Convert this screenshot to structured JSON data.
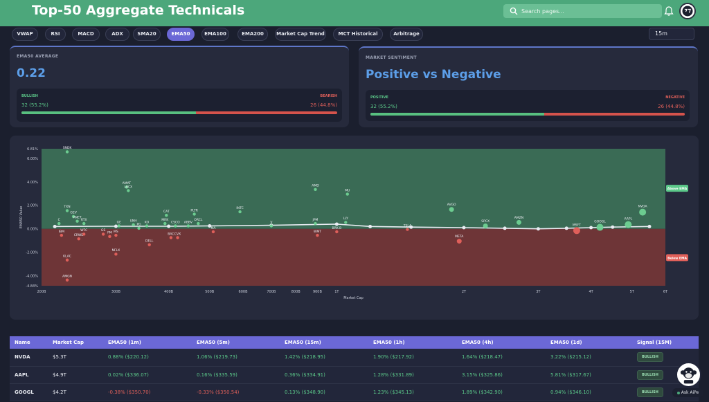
{
  "header": {
    "title": "Top-50 Aggregate Technicals",
    "search_placeholder": "Search pages..."
  },
  "tabs": [
    "VWAP",
    "RSI",
    "MACD",
    "ADX",
    "SMA20",
    "EMA50",
    "EMA100",
    "EMA200",
    "Market Cap Trend",
    "MCT Historical",
    "Arbitrage"
  ],
  "active_tab": "EMA50",
  "timeframe": "15m",
  "ema_card": {
    "label": "EMA50 AVERAGE",
    "value": "0.22",
    "bullish_label": "BULLISH",
    "bearish_label": "BEARISH",
    "bullish_value": "32 (55.2%)",
    "bearish_value": "26 (44.8%)",
    "bullish_fraction": 0.552
  },
  "sentiment_card": {
    "label": "MARKET SENTIMENT",
    "value": "Positive vs Negative",
    "positive_label": "POSITIVE",
    "negative_label": "NEGATIVE",
    "positive_value": "32 (55.2%)",
    "negative_value": "26 (44.8%)",
    "positive_fraction": 0.552
  },
  "colors": {
    "accent": "#6b68d6",
    "header": "#4ca77b",
    "positive": "#5cc98a",
    "negative": "#e0605a",
    "blue": "#5c9ee8"
  },
  "chart_data": {
    "type": "scatter",
    "xlabel": "Market Cap",
    "ylabel": "EMA50 Value",
    "x_scale": "log",
    "x_ticks": [
      "200B",
      "300B",
      "400B",
      "500B",
      "600B",
      "700B",
      "800B",
      "900B",
      "1T",
      "2T",
      "3T",
      "4T",
      "5T",
      "6T"
    ],
    "x_tick_values": [
      200,
      300,
      400,
      500,
      600,
      700,
      800,
      900,
      1000,
      2000,
      3000,
      4000,
      5000,
      6000
    ],
    "y_ticks": [
      "6.81%",
      "6.00%",
      "4.00%",
      "2.00%",
      "0.00%",
      "-2.00%",
      "-4.00%",
      "-4.84%"
    ],
    "y_tick_values": [
      6.81,
      6.0,
      4.0,
      2.0,
      0.0,
      -2.0,
      -4.0,
      -4.84
    ],
    "ylim": [
      -4.84,
      6.81
    ],
    "xlim": [
      200,
      6000
    ],
    "regions": [
      {
        "name": "Above EMA",
        "from": 0,
        "to": 6.81
      },
      {
        "name": "Below EMA",
        "from": -4.84,
        "to": 0
      }
    ],
    "points": [
      {
        "label": "SNDK",
        "x": 230,
        "y": 6.55
      },
      {
        "label": "AMAT",
        "x": 318,
        "y": 3.55
      },
      {
        "label": "LRCX",
        "x": 321,
        "y": 3.25
      },
      {
        "label": "AMD",
        "x": 890,
        "y": 3.35
      },
      {
        "label": "MU",
        "x": 1060,
        "y": 2.95
      },
      {
        "label": "TXN",
        "x": 230,
        "y": 1.55
      },
      {
        "label": "GEV",
        "x": 238,
        "y": 1.05
      },
      {
        "label": "ANET",
        "x": 243,
        "y": 0.65
      },
      {
        "label": "RTX",
        "x": 252,
        "y": 0.45
      },
      {
        "label": "C",
        "x": 220,
        "y": 0.45
      },
      {
        "label": "CAT",
        "x": 395,
        "y": 1.15
      },
      {
        "label": "PLTR",
        "x": 460,
        "y": 1.25
      },
      {
        "label": "INTC",
        "x": 590,
        "y": 1.45
      },
      {
        "label": "AVGO",
        "x": 1870,
        "y": 1.65
      },
      {
        "label": "NVDA",
        "x": 5300,
        "y": 1.42
      },
      {
        "label": "AMZN",
        "x": 2700,
        "y": 0.55
      },
      {
        "label": "MRK",
        "x": 392,
        "y": 0.45
      },
      {
        "label": "ORCL",
        "x": 470,
        "y": 0.45
      },
      {
        "label": "UNH",
        "x": 330,
        "y": 0.35
      },
      {
        "label": "KO",
        "x": 355,
        "y": 0.25
      },
      {
        "label": "CSCO",
        "x": 415,
        "y": 0.25
      },
      {
        "label": "ABBV",
        "x": 445,
        "y": 0.25
      },
      {
        "label": "GE",
        "x": 305,
        "y": 0.25
      },
      {
        "label": "PG",
        "x": 340,
        "y": 0.05
      },
      {
        "label": "JPM",
        "x": 890,
        "y": 0.45
      },
      {
        "label": "LLY",
        "x": 1050,
        "y": 0.55
      },
      {
        "label": "V",
        "x": 700,
        "y": 0.25
      },
      {
        "label": "SPCX",
        "x": 2250,
        "y": 0.25
      },
      {
        "label": "TSLA",
        "x": 1470,
        "y": -0.05
      },
      {
        "label": "GOOGL",
        "x": 4200,
        "y": 0.13
      },
      {
        "label": "AAPL",
        "x": 4900,
        "y": 0.36
      },
      {
        "label": "MSFT",
        "x": 3700,
        "y": -0.15
      },
      {
        "label": "IBM",
        "x": 223,
        "y": -0.55
      },
      {
        "label": "CRWD",
        "x": 245,
        "y": -0.85
      },
      {
        "label": "WFC",
        "x": 252,
        "y": -0.45
      },
      {
        "label": "GS",
        "x": 280,
        "y": -0.45
      },
      {
        "label": "PM",
        "x": 290,
        "y": -0.65
      },
      {
        "label": "MS",
        "x": 300,
        "y": -0.55
      },
      {
        "label": "WMT",
        "x": 900,
        "y": -0.55
      },
      {
        "label": "BRK.B",
        "x": 1000,
        "y": -0.25
      },
      {
        "label": "MA",
        "x": 510,
        "y": -0.25
      },
      {
        "label": "BAC",
        "x": 405,
        "y": -0.75
      },
      {
        "label": "CVX",
        "x": 420,
        "y": -0.75
      },
      {
        "label": "DELL",
        "x": 360,
        "y": -1.35
      },
      {
        "label": "META",
        "x": 1950,
        "y": -1.05
      },
      {
        "label": "NFLX",
        "x": 300,
        "y": -2.15
      },
      {
        "label": "KLAC",
        "x": 230,
        "y": -2.65
      },
      {
        "label": "AMGN",
        "x": 230,
        "y": -4.35
      }
    ],
    "trend_points": [
      {
        "x": 215,
        "y": 0.2
      },
      {
        "x": 300,
        "y": 0.22
      },
      {
        "x": 400,
        "y": 0.22
      },
      {
        "x": 500,
        "y": 0.25
      },
      {
        "x": 700,
        "y": 0.3
      },
      {
        "x": 1000,
        "y": 0.4
      },
      {
        "x": 1200,
        "y": 0.2
      },
      {
        "x": 1500,
        "y": 0.15
      },
      {
        "x": 2000,
        "y": 0.1
      },
      {
        "x": 2500,
        "y": 0.05
      },
      {
        "x": 3000,
        "y": 0.0
      },
      {
        "x": 3500,
        "y": 0.05
      },
      {
        "x": 4000,
        "y": 0.1
      },
      {
        "x": 4500,
        "y": 0.15
      },
      {
        "x": 5500,
        "y": 0.2
      }
    ]
  },
  "table": {
    "columns": [
      "Name",
      "Market Cap",
      "EMA50 (1m)",
      "EMA50 (5m)",
      "EMA50 (15m)",
      "EMA50 (1h)",
      "EMA50 (4h)",
      "EMA50 (1d)",
      "Signal (15M)"
    ],
    "rows": [
      {
        "name": "NVDA",
        "cap": "$5.3T",
        "vals": [
          "0.88% ($220.12)",
          "1.06% ($219.73)",
          "1.42% ($218.95)",
          "1.90% ($217.92)",
          "1.64% ($218.47)",
          "3.22% ($215.12)"
        ],
        "neg": [
          false,
          false,
          false,
          false,
          false,
          false
        ],
        "signal": "BULLISH"
      },
      {
        "name": "AAPL",
        "cap": "$4.9T",
        "vals": [
          "0.02% ($336.07)",
          "0.16% ($335.59)",
          "0.36% ($334.91)",
          "1.28% ($331.89)",
          "3.15% ($325.86)",
          "5.81% ($317.67)"
        ],
        "neg": [
          false,
          false,
          false,
          false,
          false,
          false
        ],
        "signal": "BULLISH"
      },
      {
        "name": "GOOGL",
        "cap": "$4.2T",
        "vals": [
          "-0.38% ($350.70)",
          "-0.33% ($350.54)",
          "0.13% ($348.90)",
          "1.23% ($345.13)",
          "1.89% ($342.90)",
          "0.94% ($346.10)"
        ],
        "neg": [
          true,
          true,
          false,
          false,
          false,
          false
        ],
        "signal": "BULLISH"
      }
    ]
  },
  "assistant": {
    "label": "Ask AiPe"
  }
}
